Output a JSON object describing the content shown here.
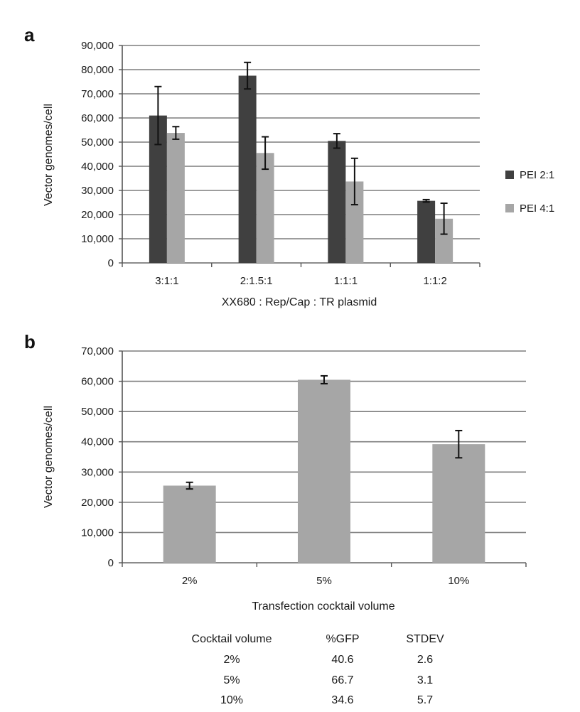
{
  "chart_data": [
    {
      "panel": "a",
      "type": "bar",
      "xlabel": "XX680 : Rep/Cap : TR plasmid",
      "ylabel": "Vector genomes/cell",
      "ylim": [
        0,
        90000
      ],
      "yticks": [
        0,
        10000,
        20000,
        30000,
        40000,
        50000,
        60000,
        70000,
        80000,
        90000
      ],
      "ytick_labels": [
        "0",
        "10,000",
        "20,000",
        "30,000",
        "40,000",
        "50,000",
        "60,000",
        "70,000",
        "80,000",
        "90,000"
      ],
      "grid": true,
      "legend_position": "right",
      "categories": [
        "3:1:1",
        "2:1.5:1",
        "1:1:1",
        "1:1:2"
      ],
      "series": [
        {
          "name": "PEI 2:1",
          "color": "#404040",
          "values": [
            61000,
            77500,
            50500,
            25700
          ],
          "errors": [
            12000,
            5500,
            3000,
            500
          ]
        },
        {
          "name": "PEI 4:1",
          "color": "#a6a6a6",
          "values": [
            53800,
            45500,
            33700,
            18300
          ],
          "errors": [
            2600,
            6700,
            9600,
            6400
          ]
        }
      ]
    },
    {
      "panel": "b",
      "type": "bar",
      "xlabel": "Transfection cocktail volume",
      "ylabel": "Vector genomes/cell",
      "ylim": [
        0,
        70000
      ],
      "yticks": [
        0,
        10000,
        20000,
        30000,
        40000,
        50000,
        60000,
        70000
      ],
      "ytick_labels": [
        "0",
        "10,000",
        "20,000",
        "30,000",
        "40,000",
        "50,000",
        "60,000",
        "70,000"
      ],
      "grid": true,
      "categories": [
        "2%",
        "5%",
        "10%"
      ],
      "series": [
        {
          "color": "#a6a6a6",
          "values": [
            25500,
            60500,
            39200
          ],
          "errors": [
            1100,
            1300,
            4500
          ]
        }
      ]
    }
  ],
  "table": {
    "headers": [
      "Cocktail volume",
      "%GFP",
      "STDEV"
    ],
    "rows": [
      [
        "2%",
        "40.6",
        "2.6"
      ],
      [
        "5%",
        "66.7",
        "3.1"
      ],
      [
        "10%",
        "34.6",
        "5.7"
      ]
    ]
  }
}
